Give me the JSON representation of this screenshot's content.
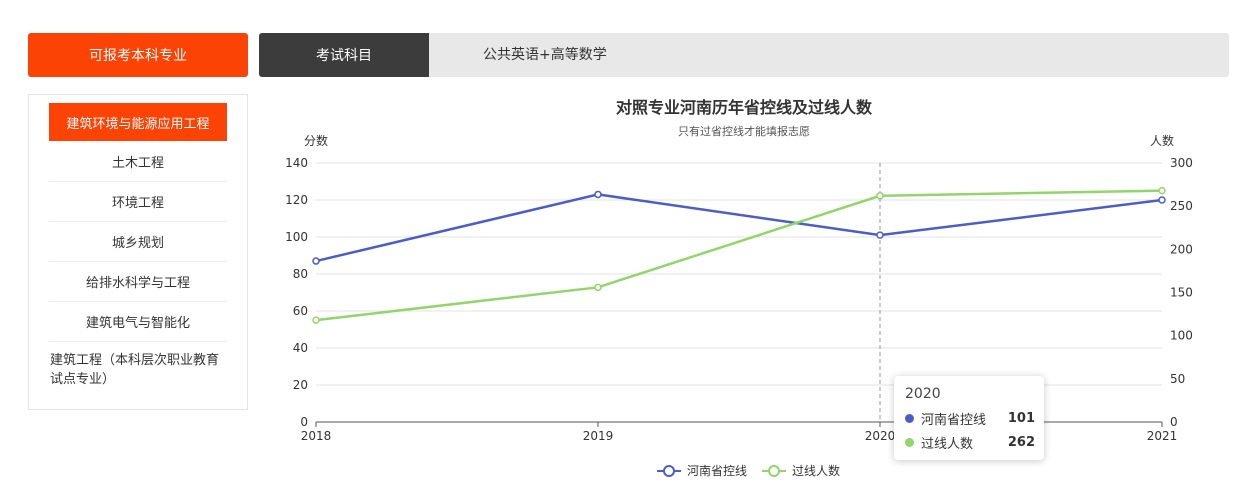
{
  "sidebar": {
    "header": "可报考本科专业",
    "items": [
      {
        "label": "建筑环境与能源应用工程",
        "active": true
      },
      {
        "label": "土木工程"
      },
      {
        "label": "环境工程"
      },
      {
        "label": "城乡规划"
      },
      {
        "label": "给排水科学与工程"
      },
      {
        "label": "建筑电气与智能化"
      },
      {
        "label": "建筑工程（本科层次职业教育试点专业）"
      }
    ]
  },
  "tabs": {
    "active_label": "考试科目",
    "value": "公共英语+高等数学"
  },
  "colors": {
    "accent": "#fb4306",
    "series1": "#4a5dc8",
    "series2": "#91d66a"
  },
  "tooltip": {
    "title": "2020",
    "rows": [
      {
        "name": "河南省控线",
        "value": "101"
      },
      {
        "name": "过线人数",
        "value": "262"
      }
    ]
  },
  "chart_data": {
    "type": "line",
    "title": "对照专业河南历年省控线及过线人数",
    "subtitle": "只有过省控线才能填报志愿",
    "x": [
      "2018",
      "2019",
      "2020",
      "2021"
    ],
    "ylabel": "分数",
    "y2label": "人数",
    "ylim": [
      0,
      140
    ],
    "y2lim": [
      0,
      300
    ],
    "yticks": [
      0,
      20,
      40,
      60,
      80,
      100,
      120,
      140
    ],
    "y2ticks": [
      0,
      50,
      100,
      150,
      200,
      250,
      300
    ],
    "series": [
      {
        "name": "河南省控线",
        "axis": "left",
        "values": [
          87,
          123,
          101,
          120
        ]
      },
      {
        "name": "过线人数",
        "axis": "right",
        "values": [
          118,
          156,
          262,
          268
        ]
      }
    ],
    "legend": "bottom",
    "grid": true,
    "highlight_x": "2020"
  }
}
